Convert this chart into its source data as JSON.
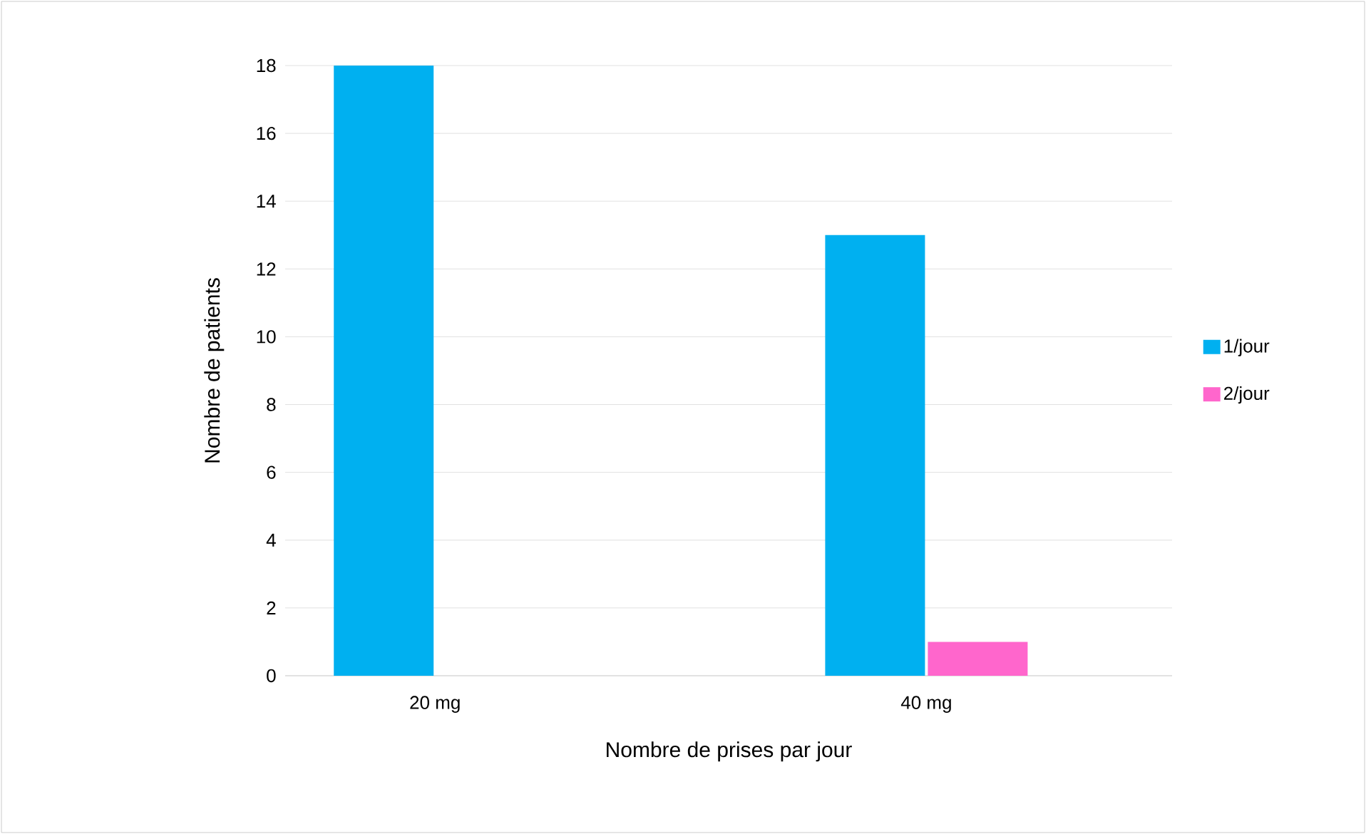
{
  "chart_data": {
    "type": "bar",
    "xlabel": "Nombre de prises par jour",
    "ylabel": "Nombre de patients",
    "categories": [
      "20 mg",
      "40 mg"
    ],
    "series": [
      {
        "name": "1/jour",
        "color": "#00b0f0",
        "values": [
          18,
          13
        ]
      },
      {
        "name": "2/jour",
        "color": "#ff66cc",
        "values": [
          0,
          1
        ]
      }
    ],
    "ylim": [
      0,
      18
    ],
    "yticks": [
      0,
      2,
      4,
      6,
      8,
      10,
      12,
      14,
      16,
      18
    ],
    "grid": "y",
    "legend": "right"
  }
}
